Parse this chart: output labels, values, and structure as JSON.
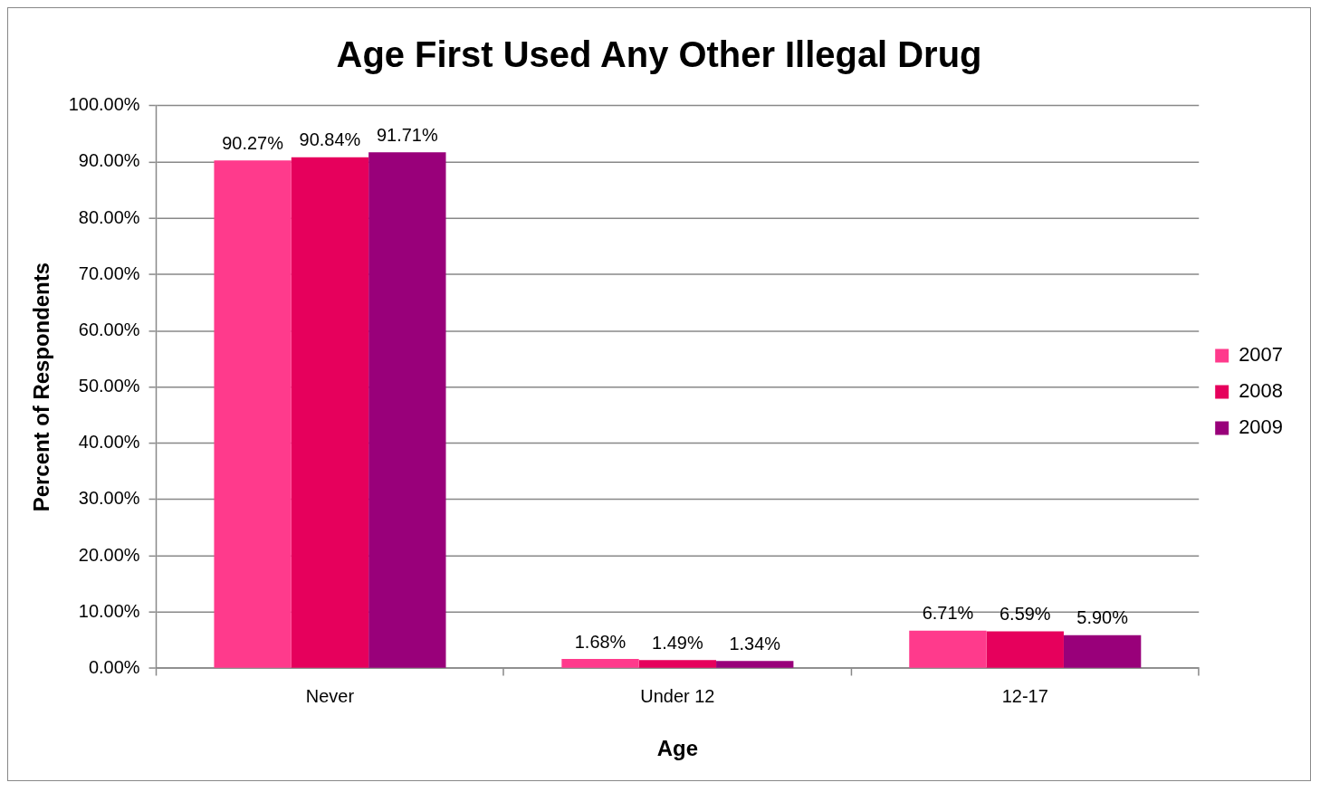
{
  "chart_data": {
    "type": "bar",
    "title": "Age First Used Any Other Illegal Drug",
    "xlabel": "Age",
    "ylabel": "Percent of Respondents",
    "categories": [
      "Never",
      "Under 12",
      "12-17"
    ],
    "series": [
      {
        "name": "2007",
        "color": "#ff3a8c",
        "values": [
          90.27,
          1.68,
          6.71
        ],
        "value_labels": [
          "90.27%",
          "1.68%",
          "6.71%"
        ]
      },
      {
        "name": "2008",
        "color": "#e6005c",
        "values": [
          90.84,
          1.49,
          6.59
        ],
        "value_labels": [
          "90.84%",
          "1.49%",
          "6.59%"
        ]
      },
      {
        "name": "2009",
        "color": "#99007a",
        "values": [
          91.71,
          1.34,
          5.9
        ],
        "value_labels": [
          "91.71%",
          "1.34%",
          "5.90%"
        ]
      }
    ],
    "ylim": [
      0,
      100
    ],
    "yticks": [
      {
        "value": 0,
        "label": "0.00%"
      },
      {
        "value": 10,
        "label": "10.00%"
      },
      {
        "value": 20,
        "label": "20.00%"
      },
      {
        "value": 30,
        "label": "30.00%"
      },
      {
        "value": 40,
        "label": "40.00%"
      },
      {
        "value": 50,
        "label": "50.00%"
      },
      {
        "value": 60,
        "label": "60.00%"
      },
      {
        "value": 70,
        "label": "70.00%"
      },
      {
        "value": 80,
        "label": "80.00%"
      },
      {
        "value": 90,
        "label": "90.00%"
      },
      {
        "value": 100,
        "label": "100.00%"
      }
    ],
    "grid": "y",
    "legend": "right"
  }
}
